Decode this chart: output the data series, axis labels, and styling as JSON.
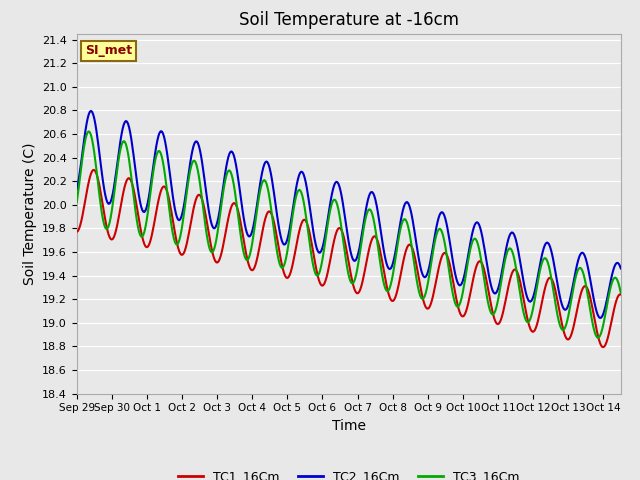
{
  "title": "Soil Temperature at -16cm",
  "ylabel": "Soil Temperature (C)",
  "xlabel": "Time",
  "inset_label": "SI_met",
  "series_labels": [
    "TC1_16Cm",
    "TC2_16Cm",
    "TC3_16Cm"
  ],
  "series_colors": [
    "#cc0000",
    "#0000cc",
    "#00aa00"
  ],
  "ylim": [
    18.4,
    21.45
  ],
  "bg_color": "#e8e8e8",
  "plot_bg_color": "#e8e8e8",
  "grid_color": "#ffffff",
  "x_tick_labels": [
    "Sep 29",
    "Sep 30",
    "Oct 1",
    "Oct 2",
    "Oct 3",
    "Oct 4",
    "Oct 5",
    "Oct 6",
    "Oct 7",
    "Oct 8",
    "Oct 9",
    "Oct 10",
    "Oct 11",
    "Oct 12",
    "Oct 13",
    "Oct 14"
  ],
  "title_fontsize": 12,
  "axis_label_fontsize": 10,
  "tick_fontsize": 8,
  "legend_fontsize": 9,
  "n_days": 15.5,
  "period": 1.0,
  "tc1_trend": [
    20.05,
    19.0
  ],
  "tc2_trend": [
    20.45,
    19.25
  ],
  "tc3_trend": [
    20.25,
    19.1
  ],
  "tc1_amp": [
    0.28,
    0.24
  ],
  "tc2_amp": [
    0.38,
    0.25
  ],
  "tc3_amp": [
    0.4,
    0.27
  ],
  "tc1_phase": -1.5,
  "tc2_phase": -1.0,
  "tc3_phase": -0.6,
  "n_pts": 500
}
